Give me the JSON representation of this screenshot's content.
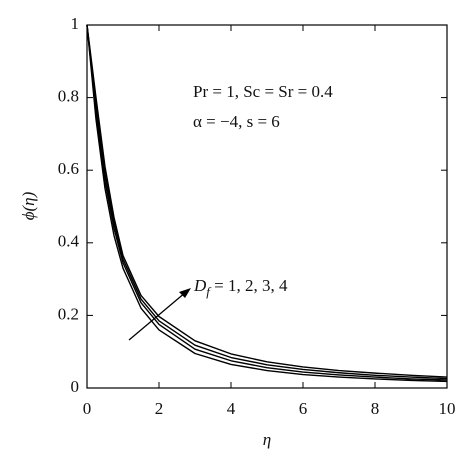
{
  "chart_data": {
    "type": "line",
    "x_label": "η",
    "y_label": "ϕ(η)",
    "annotations": [
      "Pr = 1, Sc = Sr = 0.4",
      "α = −4, s = 6"
    ],
    "parameter_label": {
      "symbol": "D",
      "subscript": "f",
      "text": " = 1, 2, 3, 4"
    },
    "x": [
      0,
      0.25,
      0.5,
      0.75,
      1,
      1.5,
      2,
      3,
      4,
      5,
      6,
      7,
      8,
      9,
      10
    ],
    "series": [
      {
        "color": "#000000",
        "values": [
          1,
          0.74,
          0.55,
          0.42,
          0.33,
          0.22,
          0.16,
          0.095,
          0.065,
          0.048,
          0.037,
          0.03,
          0.025,
          0.021,
          0.018
        ]
      },
      {
        "color": "#000000",
        "values": [
          1,
          0.76,
          0.57,
          0.44,
          0.345,
          0.235,
          0.175,
          0.107,
          0.075,
          0.056,
          0.044,
          0.036,
          0.03,
          0.025,
          0.022
        ]
      },
      {
        "color": "#000000",
        "values": [
          1,
          0.78,
          0.59,
          0.455,
          0.355,
          0.245,
          0.185,
          0.118,
          0.084,
          0.064,
          0.051,
          0.042,
          0.035,
          0.03,
          0.026
        ]
      },
      {
        "color": "#000000",
        "values": [
          1,
          0.8,
          0.61,
          0.47,
          0.365,
          0.255,
          0.197,
          0.13,
          0.094,
          0.072,
          0.058,
          0.048,
          0.041,
          0.035,
          0.03
        ]
      }
    ],
    "xlim": [
      0,
      10
    ],
    "xticks": [
      0,
      2,
      4,
      6,
      8,
      10
    ],
    "ylim": [
      0,
      1
    ],
    "yticks": [
      0,
      0.2,
      0.4,
      0.6,
      0.8,
      1
    ],
    "grid": false
  }
}
